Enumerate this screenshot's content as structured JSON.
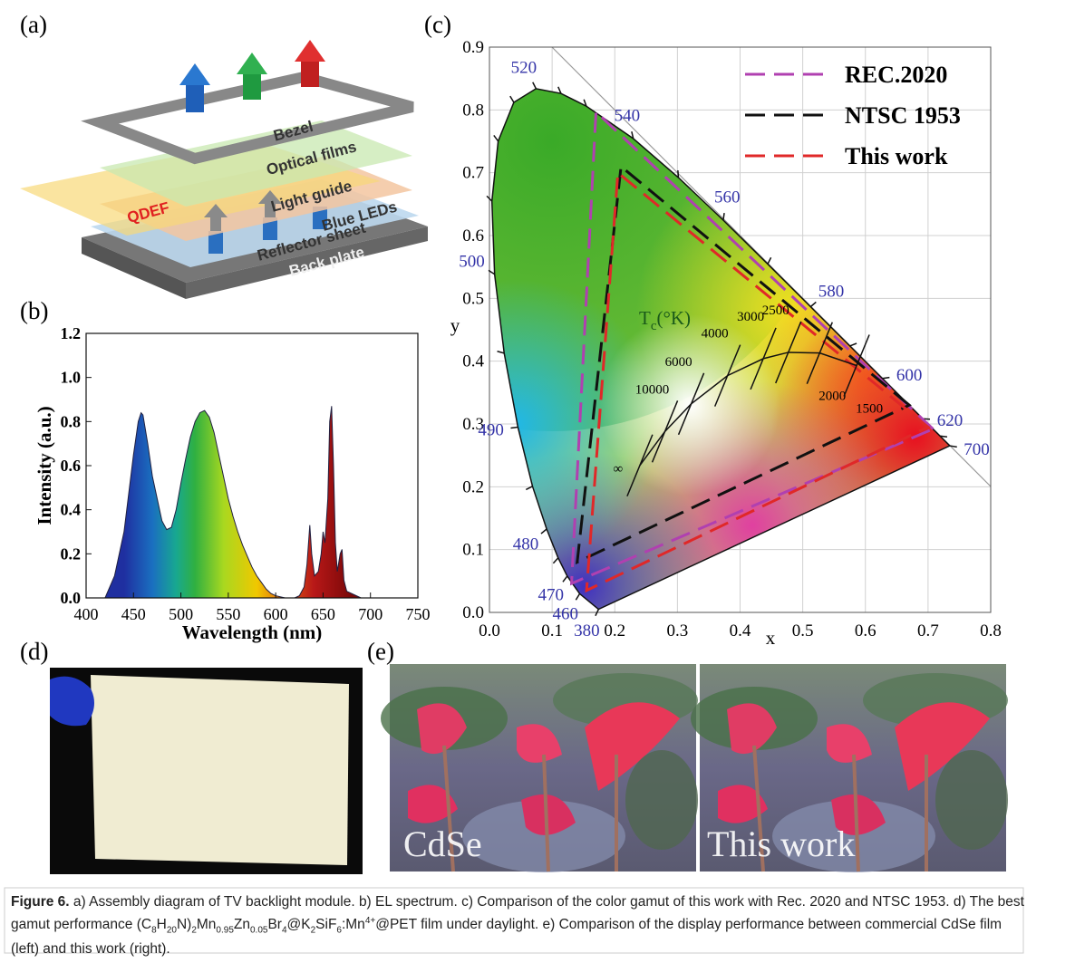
{
  "figure": {
    "panel_labels": [
      "(a)",
      "(b)",
      "(c)",
      "(d)",
      "(e)"
    ],
    "diagram_labels": {
      "bezel": "Bezel",
      "optical_films": "Optical films",
      "qdef": "QDEF",
      "light_guide": "Light guide",
      "blue_leds": "Blue LEDs",
      "reflector_sheet": "Reflector sheet",
      "back_plate": "Back plate"
    },
    "photo_labels": [
      "CdSe",
      "This work"
    ],
    "caption": [
      {
        "text": "Figure 6.",
        "style": "bold"
      },
      {
        "text": " a) Assembly diagram of TV backlight module. b) EL spectrum. c) Comparison of the color gamut of this work with Rec. 2020 and NTSC 1953. d) The best gamut performance (C"
      },
      {
        "text": "8",
        "style": "sub"
      },
      {
        "text": "H"
      },
      {
        "text": "20",
        "style": "sub"
      },
      {
        "text": "N)"
      },
      {
        "text": "2",
        "style": "sub"
      },
      {
        "text": "Mn"
      },
      {
        "text": "0.95",
        "style": "sub"
      },
      {
        "text": "Zn"
      },
      {
        "text": "0.05",
        "style": "sub"
      },
      {
        "text": "Br"
      },
      {
        "text": "4",
        "style": "sub"
      },
      {
        "text": "@K"
      },
      {
        "text": "2",
        "style": "sub"
      },
      {
        "text": "SiF"
      },
      {
        "text": "6",
        "style": "sub"
      },
      {
        "text": ":Mn"
      },
      {
        "text": "4+",
        "style": "sup"
      },
      {
        "text": "@PET film under daylight. e) Comparison of the display performance between commercial CdSe film (left) and this work (right)."
      }
    ]
  },
  "chart_data": [
    {
      "type": "area",
      "xlabel": "Wavelength (nm)",
      "ylabel": "Intensity (a.u.)",
      "x": [
        420,
        430,
        440,
        450,
        455,
        458,
        460,
        465,
        470,
        475,
        480,
        485,
        490,
        495,
        500,
        505,
        510,
        515,
        520,
        525,
        530,
        535,
        540,
        545,
        550,
        555,
        560,
        565,
        570,
        575,
        580,
        585,
        590,
        595,
        600,
        610,
        620,
        625,
        630,
        633,
        636,
        638,
        641,
        645,
        648,
        650,
        652,
        655,
        657,
        659,
        661,
        663,
        665,
        668,
        670,
        672,
        675,
        680,
        690
      ],
      "values": [
        0,
        0.1,
        0.3,
        0.65,
        0.8,
        0.84,
        0.83,
        0.7,
        0.55,
        0.45,
        0.35,
        0.31,
        0.32,
        0.4,
        0.52,
        0.63,
        0.73,
        0.8,
        0.84,
        0.85,
        0.82,
        0.75,
        0.65,
        0.55,
        0.45,
        0.37,
        0.3,
        0.24,
        0.19,
        0.14,
        0.1,
        0.07,
        0.04,
        0.02,
        0.01,
        0,
        0,
        0.01,
        0.05,
        0.15,
        0.33,
        0.2,
        0.1,
        0.12,
        0.2,
        0.3,
        0.25,
        0.45,
        0.8,
        0.87,
        0.6,
        0.25,
        0.12,
        0.2,
        0.22,
        0.08,
        0.03,
        0.02,
        0
      ],
      "fill_gradient": [
        {
          "x": 440,
          "color": "#1f2fa0"
        },
        {
          "x": 470,
          "color": "#1a6fc0"
        },
        {
          "x": 495,
          "color": "#18a890"
        },
        {
          "x": 515,
          "color": "#30b040"
        },
        {
          "x": 545,
          "color": "#a8d820"
        },
        {
          "x": 580,
          "color": "#f0c800"
        },
        {
          "x": 610,
          "color": "#e06010"
        },
        {
          "x": 640,
          "color": "#b81818"
        },
        {
          "x": 680,
          "color": "#7a0808"
        }
      ],
      "line_color": "#202040",
      "xlim": [
        400,
        750
      ],
      "xticks": [
        400,
        450,
        500,
        550,
        600,
        650,
        700,
        750
      ],
      "ylim": [
        0,
        1.2
      ],
      "yticks": [
        {
          "value": 0,
          "label": "0.0"
        },
        {
          "value": 0.2,
          "label": "0.2"
        },
        {
          "value": 0.4,
          "label": "0.4"
        },
        {
          "value": 0.6,
          "label": "0.6"
        },
        {
          "value": 0.8,
          "label": "0.8"
        },
        {
          "value": 1,
          "label": "1.0"
        },
        {
          "value": 1.2,
          "label": "1.2"
        }
      ]
    },
    {
      "type": "cie",
      "xlabel": "x",
      "ylabel": "y",
      "grid": true,
      "xlim": [
        0,
        0.8
      ],
      "xticks": [
        {
          "value": 0,
          "label": "0.0"
        },
        0.1,
        0.2,
        0.3,
        0.4,
        0.5,
        0.6,
        0.7,
        0.8
      ],
      "ylim": [
        0,
        0.9
      ],
      "yticks": [
        {
          "value": 0,
          "label": "0.0"
        },
        0.1,
        0.2,
        0.3,
        0.4,
        0.5,
        0.6,
        0.7,
        0.8,
        0.9
      ],
      "locus": {
        "x": [
          0.1741,
          0.144,
          0.1241,
          0.1096,
          0.0913,
          0.0687,
          0.0454,
          0.0235,
          0.0082,
          0.0039,
          0.0139,
          0.0389,
          0.0743,
          0.1142,
          0.1547,
          0.2296,
          0.3016,
          0.3731,
          0.4441,
          0.5125,
          0.5752,
          0.627,
          0.6915,
          0.719,
          0.7347
        ],
        "y": [
          0.005,
          0.0297,
          0.0578,
          0.0868,
          0.1327,
          0.2007,
          0.295,
          0.4127,
          0.5384,
          0.6548,
          0.7502,
          0.812,
          0.8338,
          0.8262,
          0.8059,
          0.7543,
          0.6923,
          0.6245,
          0.5547,
          0.4866,
          0.4242,
          0.3725,
          0.3083,
          0.2809,
          0.2653
        ],
        "wavelengths": [
          "380",
          "460",
          "470",
          null,
          "480",
          null,
          "490",
          null,
          "500",
          null,
          null,
          null,
          "520",
          null,
          null,
          "540",
          null,
          "560",
          null,
          "580",
          null,
          "600",
          "620",
          null,
          "700"
        ],
        "label_color": "#3434a8"
      },
      "series": [
        {
          "name": "REC.2020",
          "color": "#b040b0",
          "x": [
            0.708,
            0.17,
            0.131
          ],
          "y": [
            0.292,
            0.797,
            0.046
          ]
        },
        {
          "name": "NTSC 1953",
          "color": "#111111",
          "x": [
            0.67,
            0.21,
            0.14
          ],
          "y": [
            0.33,
            0.71,
            0.08
          ]
        },
        {
          "name": "This work",
          "color": "#e02828",
          "x": [
            0.7,
            0.205,
            0.155
          ],
          "y": [
            0.295,
            0.7,
            0.035
          ]
        }
      ],
      "legend": "top-right",
      "planckian": {
        "title": {
          "main": "T",
          "sub": "c",
          "rest": "(°K)"
        },
        "x": [
          0.24,
          0.28,
          0.322,
          0.38,
          0.437,
          0.477,
          0.527,
          0.586
        ],
        "y": [
          0.234,
          0.288,
          0.332,
          0.377,
          0.404,
          0.414,
          0.413,
          0.393
        ],
        "labels": [
          "∞",
          "10000",
          "6000",
          "4000",
          "3000",
          "2500",
          "2000",
          "1500"
        ]
      }
    }
  ]
}
